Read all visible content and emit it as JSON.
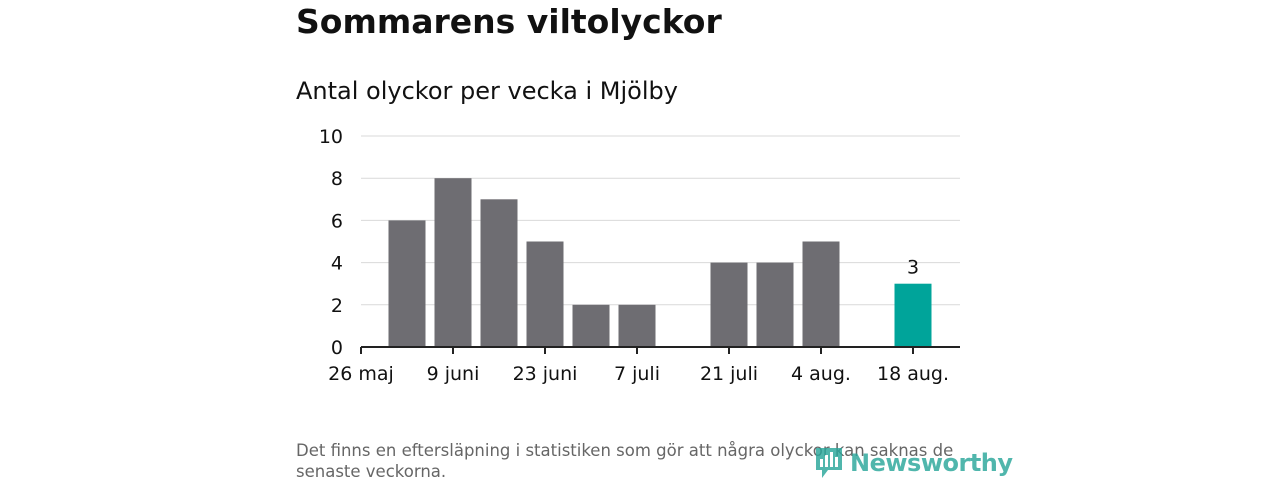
{
  "title": "Sommarens viltolyckor",
  "subtitle": "Antal olyckor per vecka i Mjölby",
  "footnote": "Det finns en eftersläpning i statistiken som gör att några olyckor kan saknas de senaste veckorna.",
  "logo_text": "Newsworthy",
  "colors": {
    "bar": "#6e6d72",
    "highlight": "#00a49a",
    "grid": "#d9d9d9",
    "axis": "#222222",
    "text": "#111111"
  },
  "chart_data": {
    "type": "bar",
    "title": "Antal olyckor per vecka i Mjölby",
    "ylim": [
      0,
      10
    ],
    "y_ticks": [
      0,
      2,
      4,
      6,
      8,
      10
    ],
    "grid": true,
    "categories": [
      "26 maj",
      "2 juni",
      "9 juni",
      "16 juni",
      "23 juni",
      "30 juni",
      "7 juli",
      "14 juli",
      "21 juli",
      "28 juli",
      "4 aug.",
      "11 aug.",
      "18 aug."
    ],
    "tick_labels": [
      "26 maj",
      "9 juni",
      "23 juni",
      "7 juli",
      "21 juli",
      "4 aug.",
      "18 aug."
    ],
    "values": [
      0,
      6,
      8,
      7,
      5,
      2,
      2,
      0,
      4,
      4,
      5,
      0,
      3
    ],
    "highlight_index": 12,
    "data_labels": [
      {
        "index": 12,
        "text": "3"
      }
    ]
  }
}
